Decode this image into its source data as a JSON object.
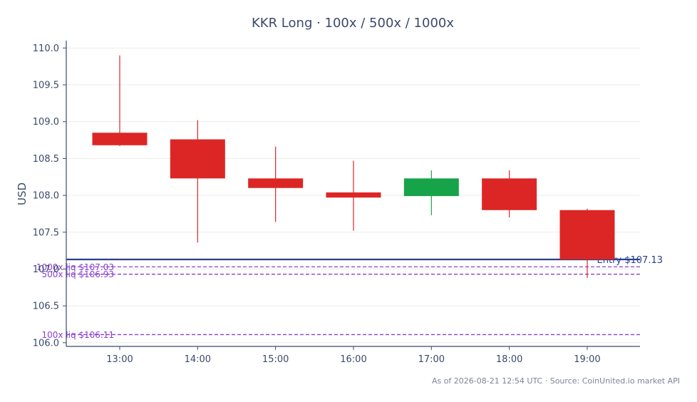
{
  "chart_data": {
    "type": "candlestick",
    "title": "KKR Long · 100x / 500x / 1000x",
    "ylabel": "USD",
    "xlabel": "",
    "ylim": [
      105.95,
      110.1
    ],
    "yticks": [
      "106.0",
      "106.5",
      "107.0",
      "107.5",
      "108.0",
      "108.5",
      "109.0",
      "109.5",
      "110.0"
    ],
    "ytick_values": [
      106.0,
      106.5,
      107.0,
      107.5,
      108.0,
      108.5,
      109.0,
      109.5,
      110.0
    ],
    "categories": [
      "13:00",
      "14:00",
      "15:00",
      "16:00",
      "17:00",
      "18:00",
      "19:00"
    ],
    "candles": [
      {
        "time": "13:00",
        "open": 108.85,
        "high": 109.9,
        "low": 108.67,
        "close": 108.68
      },
      {
        "time": "14:00",
        "open": 108.76,
        "high": 109.02,
        "low": 107.36,
        "close": 108.23
      },
      {
        "time": "15:00",
        "open": 108.23,
        "high": 108.66,
        "low": 107.64,
        "close": 108.1
      },
      {
        "time": "16:00",
        "open": 108.04,
        "high": 108.47,
        "low": 107.52,
        "close": 107.97
      },
      {
        "time": "17:00",
        "open": 107.99,
        "high": 108.34,
        "low": 107.73,
        "close": 108.23
      },
      {
        "time": "18:00",
        "open": 108.23,
        "high": 108.34,
        "low": 107.7,
        "close": 107.8
      },
      {
        "time": "19:00",
        "open": 107.8,
        "high": 107.82,
        "low": 106.88,
        "close": 107.13
      }
    ],
    "reference_lines": [
      {
        "label": "Entry $107.13",
        "value": 107.13,
        "style": "solid",
        "color": "#2a3f8f"
      },
      {
        "label": "1000x liq $107.03",
        "value": 107.03,
        "style": "dashed",
        "color": "#8a3fd1"
      },
      {
        "label": "500x liq $106.93",
        "value": 106.93,
        "style": "dashed",
        "color": "#8a3fd1"
      },
      {
        "label": "100x liq $106.11",
        "value": 106.11,
        "style": "dashed",
        "color": "#8a3fd1"
      }
    ],
    "colors": {
      "up": "#17a34a",
      "down": "#dc2626",
      "axis": "#3b4a6b",
      "grid": "#ebebeb",
      "text": "#3b4a6b"
    },
    "grid": true,
    "footer": "As of 2026-08-21 12:54 UTC · Source: CoinUnited.io market API"
  }
}
